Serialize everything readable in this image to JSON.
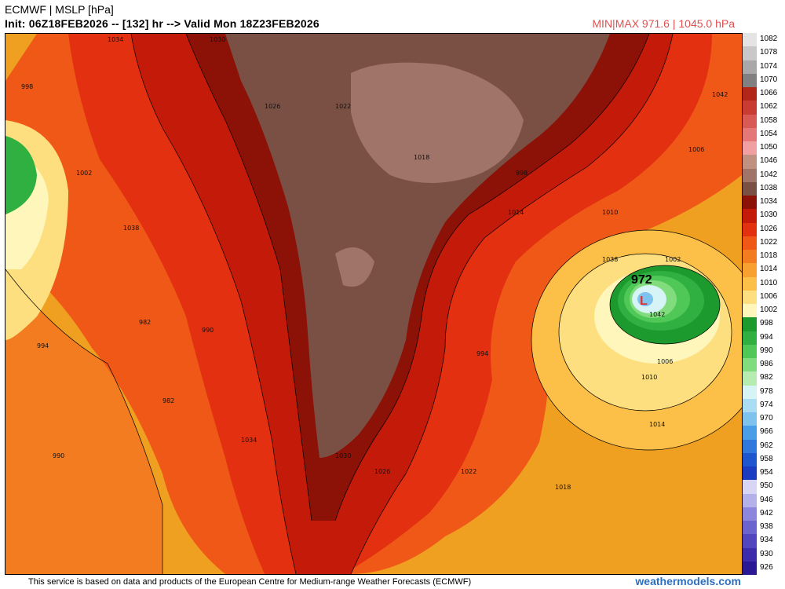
{
  "header": {
    "title": "ECMWF | MSLP [hPa]",
    "init_line": "Init: 06Z18FEB2026 -- [132] hr --> Valid Mon 18Z23FEB2026",
    "minmax": "MIN|MAX 971.6 | 1045.0 hPa"
  },
  "footer": {
    "attribution": "This service is based on data and products of the European Centre for Medium-range Weather Forecasts (ECMWF)",
    "credit": "weathermodels.com"
  },
  "colors": {
    "ocean_base": "#f0a020",
    "land_base": "#e04a16",
    "low_center": "#30a83a",
    "high_center": "#7a5045"
  },
  "low": {
    "label": "L",
    "value": "972"
  },
  "contour_labels": [
    "1034",
    "1030",
    "1026",
    "1022",
    "1018",
    "1014",
    "1010",
    "1006",
    "1042",
    "1038",
    "1002",
    "998",
    "994",
    "990",
    "982"
  ],
  "colorbar": [
    {
      "label": "1082",
      "color": "#e4e4e4"
    },
    {
      "label": "1078",
      "color": "#c8c8c8"
    },
    {
      "label": "1074",
      "color": "#a8a8a8"
    },
    {
      "label": "1070",
      "color": "#808080"
    },
    {
      "label": "1066",
      "color": "#b22818"
    },
    {
      "label": "1062",
      "color": "#c83c32"
    },
    {
      "label": "1058",
      "color": "#d85a55"
    },
    {
      "label": "1054",
      "color": "#e47878"
    },
    {
      "label": "1050",
      "color": "#f0a0a0"
    },
    {
      "label": "1046",
      "color": "#c09080"
    },
    {
      "label": "1042",
      "color": "#a07468"
    },
    {
      "label": "1038",
      "color": "#7a5045"
    },
    {
      "label": "1034",
      "color": "#8c1208"
    },
    {
      "label": "1030",
      "color": "#c41a0a"
    },
    {
      "label": "1026",
      "color": "#e23010"
    },
    {
      "label": "1022",
      "color": "#f05818"
    },
    {
      "label": "1018",
      "color": "#f47c20"
    },
    {
      "label": "1014",
      "color": "#f8a030"
    },
    {
      "label": "1010",
      "color": "#fcc048"
    },
    {
      "label": "1006",
      "color": "#fedf80"
    },
    {
      "label": "1002",
      "color": "#fff6bc"
    },
    {
      "label": "998",
      "color": "#1c9a2e"
    },
    {
      "label": "994",
      "color": "#30b040"
    },
    {
      "label": "990",
      "color": "#50c858"
    },
    {
      "label": "986",
      "color": "#80dc7c"
    },
    {
      "label": "982",
      "color": "#b6ecb0"
    },
    {
      "label": "978",
      "color": "#d6f4f6"
    },
    {
      "label": "974",
      "color": "#aadcf4"
    },
    {
      "label": "970",
      "color": "#7ec2ee"
    },
    {
      "label": "966",
      "color": "#4a9ee8"
    },
    {
      "label": "962",
      "color": "#2e78de"
    },
    {
      "label": "958",
      "color": "#1e56d0"
    },
    {
      "label": "954",
      "color": "#1a3cc0"
    },
    {
      "label": "950",
      "color": "#d8d6f4"
    },
    {
      "label": "946",
      "color": "#b4b0ea"
    },
    {
      "label": "942",
      "color": "#8c86dc"
    },
    {
      "label": "938",
      "color": "#6c64ce"
    },
    {
      "label": "934",
      "color": "#5246be"
    },
    {
      "label": "930",
      "color": "#3c2cac"
    },
    {
      "label": "926",
      "color": "#2a1894"
    }
  ]
}
